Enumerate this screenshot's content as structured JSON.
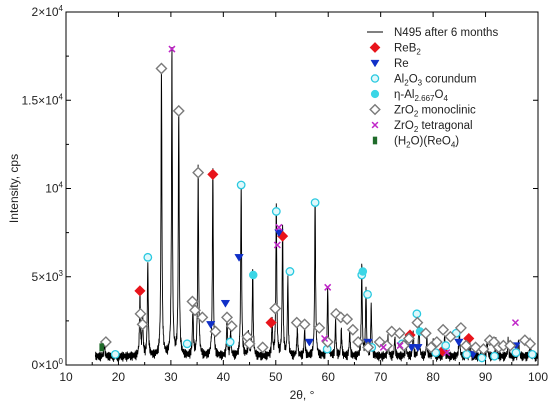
{
  "chart_data": {
    "type": "line",
    "xlabel": "2θ, °",
    "ylabel": "Intensity, cps",
    "xlim": [
      10,
      100
    ],
    "ylim": [
      0,
      20000
    ],
    "x_ticks": [
      10,
      20,
      30,
      40,
      50,
      60,
      70,
      80,
      90,
      100
    ],
    "x_tick_labels": [
      "10",
      "20",
      "30",
      "40",
      "50",
      "60",
      "70",
      "80",
      "90",
      "100"
    ],
    "y_ticks": [
      {
        "value": 0,
        "base": "0×10",
        "exp": "0"
      },
      {
        "value": 5000,
        "base": "5×10",
        "exp": "3"
      },
      {
        "value": 10000,
        "base": "10",
        "exp": "4"
      },
      {
        "value": 15000,
        "base": "1.5×10",
        "exp": "4"
      },
      {
        "value": 20000,
        "base": "2×10",
        "exp": "4"
      }
    ],
    "spectrum": {
      "name": "N495 after 6 months",
      "color": "#000000",
      "baseline": 500,
      "peaks": [
        [
          17.3,
          800
        ],
        [
          24.1,
          3500
        ],
        [
          24.6,
          2400
        ],
        [
          25.6,
          5300
        ],
        [
          28.2,
          16300
        ],
        [
          30.2,
          17300
        ],
        [
          31.5,
          14000
        ],
        [
          34.2,
          2800
        ],
        [
          35.2,
          10700
        ],
        [
          38.0,
          10500
        ],
        [
          40.7,
          2100
        ],
        [
          41.4,
          1500
        ],
        [
          43.4,
          9800
        ],
        [
          44.8,
          1300
        ],
        [
          45.6,
          4900
        ],
        [
          49.3,
          2000
        ],
        [
          50.1,
          8500
        ],
        [
          51.3,
          7300
        ],
        [
          52.3,
          4400
        ],
        [
          54.1,
          1600
        ],
        [
          55.5,
          1600
        ],
        [
          57.5,
          9000
        ],
        [
          59.9,
          3900
        ],
        [
          61.4,
          2000
        ],
        [
          62.5,
          1500
        ],
        [
          64.1,
          1500
        ],
        [
          66.4,
          5100
        ],
        [
          67.2,
          3800
        ],
        [
          68.2,
          2900
        ],
        [
          71.4,
          1100
        ],
        [
          72.7,
          1100
        ],
        [
          74.8,
          1100
        ],
        [
          76.2,
          1300
        ],
        [
          77.3,
          2100
        ],
        [
          78.8,
          1100
        ],
        [
          80.0,
          900
        ],
        [
          82.2,
          1100
        ],
        [
          85.0,
          1600
        ],
        [
          87.0,
          900
        ],
        [
          90.3,
          900
        ],
        [
          92.0,
          900
        ],
        [
          94.3,
          900
        ],
        [
          96.3,
          900
        ],
        [
          98.5,
          900
        ]
      ]
    },
    "series": [
      {
        "name": "ReB",
        "name_sub": "2",
        "marker": "diamond-filled",
        "color": "#e8141b",
        "points": [
          [
            24.1,
            4200
          ],
          [
            38.0,
            10800
          ],
          [
            49.1,
            2400
          ],
          [
            51.3,
            7300
          ],
          [
            75.6,
            1700
          ],
          [
            86.8,
            1500
          ],
          [
            81.8,
            800
          ]
        ]
      },
      {
        "name": "Re",
        "marker": "triangle-down",
        "color": "#1030c8",
        "points": [
          [
            37.6,
            2300
          ],
          [
            40.4,
            3500
          ],
          [
            43.0,
            6100
          ],
          [
            50.6,
            7500
          ],
          [
            56.4,
            1300
          ],
          [
            67.6,
            1300
          ],
          [
            75.9,
            1000
          ],
          [
            77.1,
            1000
          ],
          [
            84.9,
            1300
          ],
          [
            87.6,
            600
          ],
          [
            95.8,
            1100
          ]
        ]
      },
      {
        "name": "Al",
        "name_sub": "2",
        "name_mid": "O",
        "name_sub2": "3",
        "name_tail": " corundum",
        "marker": "circle-open",
        "color": "#29c9e0",
        "points": [
          [
            19.4,
            600
          ],
          [
            25.6,
            6100
          ],
          [
            33.1,
            1200
          ],
          [
            41.3,
            1300
          ],
          [
            43.4,
            10200
          ],
          [
            50.1,
            8700
          ],
          [
            52.7,
            5300
          ],
          [
            57.5,
            9200
          ],
          [
            59.8,
            900
          ],
          [
            66.4,
            5100
          ],
          [
            67.5,
            4000
          ],
          [
            68.3,
            1000
          ],
          [
            76.9,
            2900
          ],
          [
            74.1,
            1200
          ],
          [
            84.4,
            1800
          ],
          [
            86.4,
            600
          ],
          [
            89.3,
            400
          ],
          [
            91.7,
            500
          ],
          [
            95.8,
            700
          ],
          [
            98.9,
            600
          ],
          [
            80.5,
            700
          ],
          [
            82.4,
            1100
          ]
        ]
      },
      {
        "name": "η-Al",
        "name_sub": "2.667",
        "name_mid": "O",
        "name_sub2": "4",
        "name_tail": "",
        "marker": "circle-filled",
        "color": "#3bd6e6",
        "points": [
          [
            45.7,
            5100
          ],
          [
            66.6,
            5300
          ],
          [
            77.5,
            1900
          ]
        ]
      },
      {
        "name": "ZrO",
        "name_sub": "2",
        "name_tail": " monoclinic",
        "marker": "diamond-open",
        "color": "#7a7a7a",
        "points": [
          [
            17.6,
            1300
          ],
          [
            24.2,
            2900
          ],
          [
            24.6,
            2300
          ],
          [
            28.2,
            16800
          ],
          [
            31.5,
            14400
          ],
          [
            34.1,
            3600
          ],
          [
            34.6,
            3100
          ],
          [
            35.2,
            10900
          ],
          [
            36.0,
            2700
          ],
          [
            38.5,
            1900
          ],
          [
            40.7,
            2700
          ],
          [
            41.6,
            2200
          ],
          [
            44.6,
            1600
          ],
          [
            45.0,
            1200
          ],
          [
            47.5,
            1000
          ],
          [
            49.9,
            3200
          ],
          [
            54.0,
            2400
          ],
          [
            55.5,
            2300
          ],
          [
            58.3,
            2100
          ],
          [
            59.9,
            1300
          ],
          [
            61.5,
            2900
          ],
          [
            62.4,
            2700
          ],
          [
            63.6,
            2600
          ],
          [
            64.7,
            2000
          ],
          [
            65.7,
            1300
          ],
          [
            67.6,
            1000
          ],
          [
            69.8,
            1300
          ],
          [
            71.2,
            1100
          ],
          [
            72.1,
            1900
          ],
          [
            73.6,
            1800
          ],
          [
            74.4,
            1100
          ],
          [
            75.4,
            1500
          ],
          [
            77.0,
            2400
          ],
          [
            78.6,
            1800
          ],
          [
            79.6,
            1000
          ],
          [
            80.7,
            1300
          ],
          [
            81.9,
            2000
          ],
          [
            83.3,
            1600
          ],
          [
            85.3,
            2100
          ],
          [
            86.3,
            1100
          ],
          [
            88.1,
            1000
          ],
          [
            89.6,
            900
          ],
          [
            90.8,
            1400
          ],
          [
            91.6,
            1300
          ],
          [
            92.5,
            1000
          ],
          [
            93.4,
            1100
          ],
          [
            94.7,
            1100
          ],
          [
            97.5,
            1400
          ],
          [
            98.5,
            1200
          ]
        ]
      },
      {
        "name": "ZrO",
        "name_sub": "2",
        "name_tail": " tetragonal",
        "marker": "x",
        "color": "#c026c8",
        "points": [
          [
            30.2,
            17900
          ],
          [
            50.3,
            6800
          ],
          [
            50.6,
            7800
          ],
          [
            59.3,
            1500
          ],
          [
            59.9,
            4400
          ],
          [
            70.5,
            1000
          ],
          [
            73.7,
            1100
          ],
          [
            82.6,
            700
          ],
          [
            95.7,
            2400
          ]
        ]
      },
      {
        "name": "(H",
        "name_sub": "2",
        "name_mid": "O)(ReO",
        "name_sub2": "4",
        "name_tail": ")",
        "marker": "square-filled",
        "color": "#1f6b2a",
        "points": [
          [
            16.8,
            1000
          ]
        ]
      }
    ],
    "legend_placement": "top-right",
    "grid": false
  }
}
